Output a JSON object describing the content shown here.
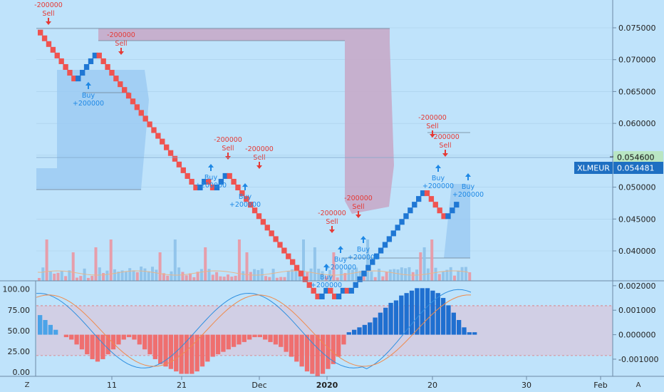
{
  "symbol": "XLMEUR",
  "colors": {
    "background": "#bfe3fb",
    "up": "#1f77d4",
    "down": "#ef5350",
    "buy": "#1e88e5",
    "sell": "#e53935",
    "current_price_tag": "#1e6fc2",
    "last_close_tag": "#b9e6c3"
  },
  "price_axis": {
    "ticks": [
      "0.075000",
      "0.070000",
      "0.065000",
      "0.060000",
      "0.055000",
      "0.050000",
      "0.045000",
      "0.040000"
    ],
    "current_price": "0.054481",
    "last_close": "0.054600"
  },
  "oscillator_axis_left": {
    "ticks": [
      "100.00",
      "75.00",
      "50.00",
      "25.00",
      "0.00"
    ]
  },
  "oscillator_axis_right": {
    "ticks": [
      "0.002000",
      "0.001000",
      "0.000000",
      "-0.001000"
    ]
  },
  "time_axis": {
    "ticks": [
      "11",
      "21",
      "Dec",
      "2020",
      "20",
      "30",
      "Feb"
    ]
  },
  "corner_labels": {
    "left": "Z",
    "right": "A"
  },
  "signals": [
    {
      "type": "sell",
      "label": "Sell",
      "qty": "-200000"
    },
    {
      "type": "sell",
      "label": "Sell",
      "qty": "-200000"
    },
    {
      "type": "buy",
      "label": "Buy",
      "qty": "+200000"
    },
    {
      "type": "sell",
      "label": "Sell",
      "qty": "-200000"
    },
    {
      "type": "buy",
      "label": "Buy",
      "qty": "+200000"
    },
    {
      "type": "sell",
      "label": "Sell",
      "qty": "-200000"
    },
    {
      "type": "buy",
      "label": "Buy",
      "qty": "+200000"
    },
    {
      "type": "sell",
      "label": "Sell",
      "qty": "-200000"
    },
    {
      "type": "buy",
      "label": "Buy",
      "qty": "+200000"
    },
    {
      "type": "buy",
      "label": "Buy",
      "qty": "+200000"
    },
    {
      "type": "sell",
      "label": "Sell",
      "qty": "-200000"
    },
    {
      "type": "buy",
      "label": "Buy",
      "qty": "+200000"
    },
    {
      "type": "sell",
      "label": "Sell",
      "qty": "-200000"
    },
    {
      "type": "sell",
      "label": "Sell",
      "qty": "-200000"
    },
    {
      "type": "buy",
      "label": "Buy",
      "qty": "+200000"
    },
    {
      "type": "buy",
      "label": "Buy",
      "qty": "+200000"
    }
  ],
  "chart_data": {
    "type": "renko",
    "box_size": 0.0009,
    "start_price": 0.0747,
    "bricks": [
      -1,
      -1,
      -1,
      -1,
      -1,
      -1,
      -1,
      -1,
      -1,
      1,
      1,
      1,
      1,
      1,
      -1,
      -1,
      -1,
      -1,
      -1,
      -1,
      -1,
      -1,
      -1,
      -1,
      -1,
      -1,
      -1,
      -1,
      -1,
      -1,
      -1,
      -1,
      -1,
      -1,
      -1,
      -1,
      -1,
      -1,
      1,
      1,
      -1,
      -1,
      1,
      1,
      1,
      -1,
      -1,
      -1,
      -1,
      -1,
      -1,
      -1,
      -1,
      -1,
      -1,
      -1,
      -1,
      -1,
      -1,
      -1,
      -1,
      -1,
      -1,
      -1,
      -1,
      -1,
      -1,
      1,
      1,
      -1,
      -1,
      1,
      1,
      -1,
      1,
      1,
      1,
      1,
      1,
      1,
      1,
      1,
      1,
      1,
      1,
      1,
      1,
      1,
      1,
      1,
      1,
      1,
      -1,
      -1,
      -1,
      -1,
      -1,
      1,
      1,
      1
    ],
    "y_range": [
      0.0364,
      0.0785
    ],
    "oscillator": {
      "left_range": [
        -5,
        110
      ],
      "right_range": [
        -0.0017,
        0.0022
      ],
      "band_upper": 80,
      "band_lower": 20
    }
  }
}
